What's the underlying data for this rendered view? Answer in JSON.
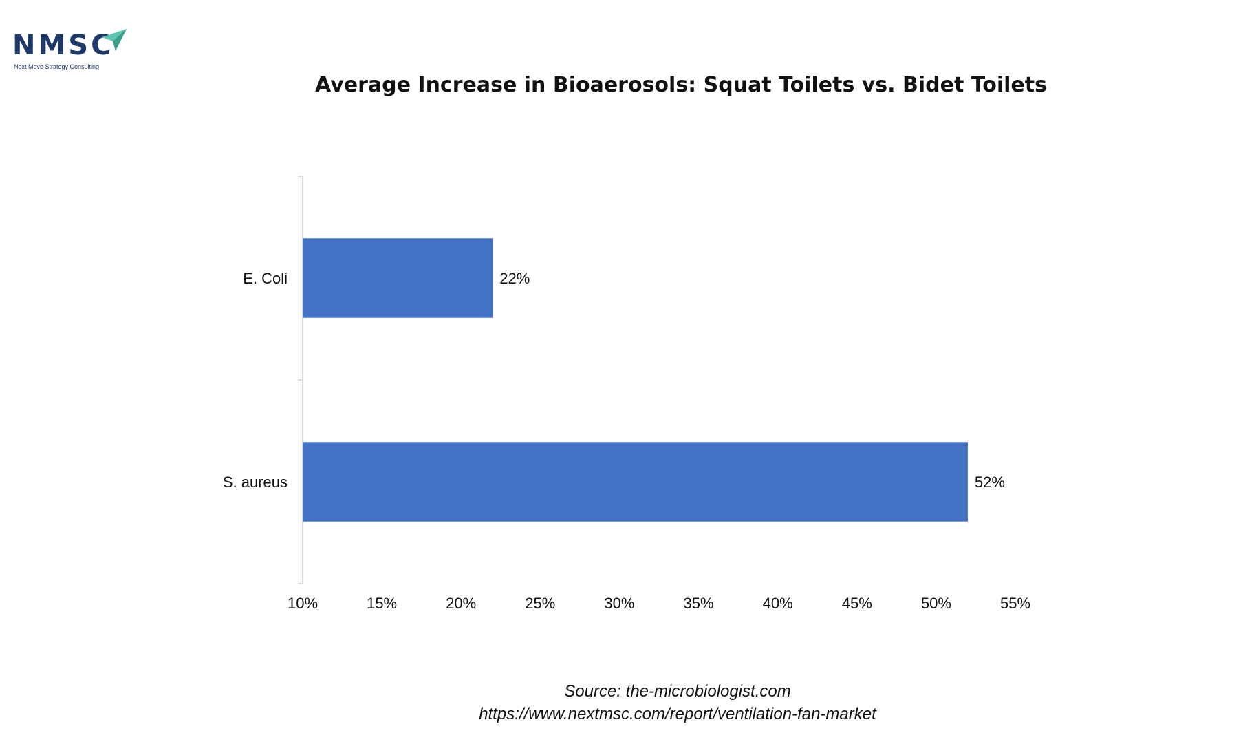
{
  "logo": {
    "text": "NMSC",
    "subtitle": "Next Move Strategy Consulting",
    "brand_color": "#1f3a68",
    "accent_color": "#5fc4b0"
  },
  "source": {
    "line1": "Source: the-microbiologist.com",
    "line2": "https://www.nextmsc.com/report/ventilation-fan-market"
  },
  "chart_data": {
    "type": "bar",
    "orientation": "horizontal",
    "title": "Average Increase in Bioaerosols: Squat Toilets vs. Bidet Toilets",
    "categories": [
      "E. Coli",
      "S. aureus"
    ],
    "values": [
      22,
      52
    ],
    "data_labels": [
      "22%",
      "52%"
    ],
    "xlabel": "",
    "ylabel": "",
    "xlim": [
      10,
      55
    ],
    "x_ticks": [
      10,
      15,
      20,
      25,
      30,
      35,
      40,
      45,
      50,
      55
    ],
    "x_tick_labels": [
      "10%",
      "15%",
      "20%",
      "25%",
      "30%",
      "35%",
      "40%",
      "45%",
      "50%",
      "55%"
    ],
    "grid": false,
    "legend": "none",
    "bar_color": "#4472c4"
  }
}
